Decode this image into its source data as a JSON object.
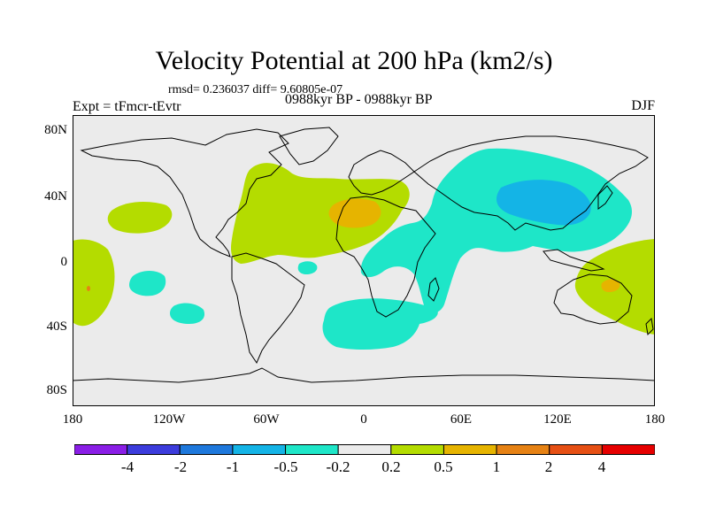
{
  "title": "Velocity Potential at 200 hPa (km2/s)",
  "stats": "rmsd= 0.236037  diff= 9.60805e-07",
  "experiment": "Expt = tFmcr-tEvtr",
  "period": "0988kyr BP - 0988kyr BP",
  "season": "DJF",
  "lat_labels": [
    "80N",
    "40N",
    "0",
    "40S",
    "80S"
  ],
  "lon_labels": [
    "180",
    "120W",
    "60W",
    "0",
    "60E",
    "120E",
    "180"
  ],
  "colorbar": {
    "labels": [
      "-4",
      "-2",
      "-1",
      "-0.5",
      "-0.2",
      "0.2",
      "0.5",
      "1",
      "2",
      "4"
    ],
    "colors": [
      "#8a1ee6",
      "#3c3cdc",
      "#1e78dc",
      "#14b4e6",
      "#1ee6c8",
      "#ebebeb",
      "#b4dc00",
      "#e6b400",
      "#e68214",
      "#e65014",
      "#e60000"
    ]
  },
  "colors": {
    "ocean_bg": "#ebebeb",
    "coast": "#000000",
    "pos_weak": "#b4dc00",
    "pos_mid": "#e6b400",
    "pos_strong": "#e68214",
    "neg_weak": "#1ee6c8",
    "neg_mid": "#14b4e6"
  }
}
